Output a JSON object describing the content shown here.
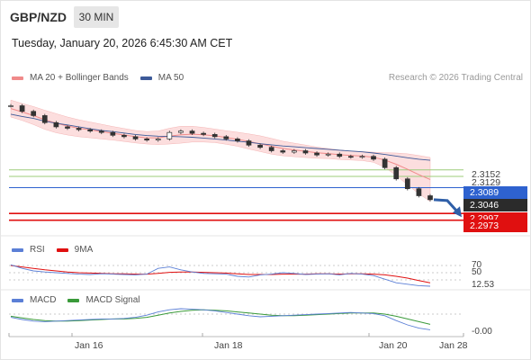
{
  "header": {
    "symbol": "GBP/NZD",
    "timeframe": "30 MIN",
    "datetime": "Tuesday, January 20, 2026 6:45:30 AM CET",
    "credit": "Research © 2026 Trading Central"
  },
  "legend": {
    "price": [
      {
        "label": "MA 20 + Bollinger Bands",
        "color": "#f08a8a"
      },
      {
        "label": "MA 50",
        "color": "#3d5a99"
      }
    ],
    "rsi": [
      {
        "label": "RSI",
        "color": "#5b7fd6"
      },
      {
        "label": "9MA",
        "color": "#e01010"
      }
    ],
    "macd": [
      {
        "label": "MACD",
        "color": "#5b7fd6"
      },
      {
        "label": "MACD Signal",
        "color": "#3a9a3a"
      }
    ]
  },
  "price_levels": [
    {
      "label": "2.3152",
      "value": 2.3152,
      "line_color": "#9ccc7a",
      "tag_color": "",
      "text_color": "#444"
    },
    {
      "label": "2.3129",
      "value": 2.3129,
      "line_color": "#9ccc7a",
      "tag_color": "",
      "text_color": "#444"
    },
    {
      "label": "2.3089",
      "value": 2.3089,
      "line_color": "#2e62cf",
      "tag_color": "#2e62cf",
      "text_color": "#ffffff"
    },
    {
      "label": "2.3046",
      "value": 2.3046,
      "line_color": "",
      "tag_color": "#2b2b2b",
      "text_color": "#ffffff"
    },
    {
      "label": "2.2997",
      "value": 2.2997,
      "line_color": "#e01010",
      "tag_color": "#e01010",
      "text_color": "#ffffff"
    },
    {
      "label": "2.2973",
      "value": 2.2973,
      "line_color": "#e01010",
      "tag_color": "#e01010",
      "text_color": "#ffffff"
    }
  ],
  "rsi_levels": {
    "upper": "70",
    "mid": "50",
    "current": "12.53"
  },
  "macd_current": "-0.00",
  "x_axis": [
    "Jan 16",
    "Jan 18",
    "Jan 20",
    "Jan 28"
  ],
  "chart_data": {
    "type": "line",
    "description_free": true,
    "x_ticks": [
      "Jan 16",
      "Jan 18",
      "Jan 20",
      "Jan 28"
    ],
    "price": [
      2.338,
      2.336,
      2.3345,
      2.332,
      2.3305,
      2.33,
      2.3295,
      2.329,
      2.3285,
      2.3275,
      2.327,
      2.3262,
      2.3258,
      2.3262,
      2.3285,
      2.329,
      2.3282,
      2.3278,
      2.327,
      2.3262,
      2.3255,
      2.324,
      2.3232,
      2.322,
      2.3215,
      2.322,
      2.3212,
      2.3205,
      2.3208,
      2.32,
      2.3198,
      2.32,
      2.319,
      2.316,
      2.312,
      2.3085,
      2.306,
      2.3046
    ],
    "ma50": [
      2.335,
      2.3342,
      2.3335,
      2.3325,
      2.3318,
      2.3312,
      2.3305,
      2.3298,
      2.3292,
      2.3288,
      2.3283,
      2.3278,
      2.3274,
      2.3272,
      2.3271,
      2.327,
      2.3268,
      2.3265,
      2.3262,
      2.3258,
      2.3254,
      2.325,
      2.3245,
      2.3241,
      2.3237,
      2.3234,
      2.3231,
      2.3228,
      2.3225,
      2.3222,
      2.3219,
      2.3216,
      2.3212,
      2.3207,
      2.3201,
      2.3195,
      2.319,
      2.3186
    ],
    "ma20": [
      2.337,
      2.3358,
      2.3345,
      2.333,
      2.3318,
      2.3308,
      2.33,
      2.3294,
      2.3288,
      2.3282,
      2.3276,
      2.327,
      2.3266,
      2.3266,
      2.3272,
      2.3277,
      2.3279,
      2.3277,
      2.3273,
      2.3267,
      2.3261,
      2.3253,
      2.3245,
      2.3236,
      2.3228,
      2.3223,
      2.3218,
      2.3213,
      2.321,
      2.3206,
      2.3203,
      2.3201,
      2.3197,
      2.3187,
      2.3172,
      2.3154,
      2.3135,
      2.3118
    ],
    "band_width": [
      0.003,
      0.003,
      0.0032,
      0.0034,
      0.0034,
      0.0032,
      0.003,
      0.0028,
      0.0026,
      0.0024,
      0.0023,
      0.0022,
      0.0022,
      0.0024,
      0.0028,
      0.003,
      0.0028,
      0.0026,
      0.0024,
      0.0024,
      0.0025,
      0.0027,
      0.0028,
      0.0028,
      0.0026,
      0.0024,
      0.0022,
      0.002,
      0.0018,
      0.0017,
      0.0016,
      0.0016,
      0.0018,
      0.0026,
      0.004,
      0.0055,
      0.0068,
      0.0078
    ],
    "price_ylim": [
      2.294,
      2.342
    ],
    "forecast": [
      2.3046,
      2.2997
    ],
    "rsi": [
      72,
      62,
      55,
      52,
      50,
      48,
      46,
      45,
      47,
      46,
      45,
      44,
      46,
      62,
      66,
      58,
      52,
      48,
      47,
      46,
      40,
      38,
      44,
      46,
      50,
      48,
      45,
      46,
      47,
      44,
      48,
      46,
      42,
      32,
      22,
      18,
      14,
      12.53
    ],
    "rsi_ma": [
      70,
      66,
      62,
      58,
      55,
      52,
      50,
      49,
      48,
      47,
      47,
      46,
      46,
      48,
      51,
      52,
      52,
      51,
      50,
      49,
      47,
      45,
      45,
      45,
      46,
      46,
      46,
      47,
      47,
      46,
      47,
      47,
      46,
      44,
      40,
      35,
      28,
      22
    ],
    "rsi_ylim": [
      0,
      100
    ],
    "macd": [
      -0.0006,
      -0.001,
      -0.0013,
      -0.0014,
      -0.0013,
      -0.0012,
      -0.0011,
      -0.001,
      -0.0009,
      -0.0009,
      -0.0008,
      -0.0006,
      -0.0002,
      0.0004,
      0.0008,
      0.001,
      0.0009,
      0.0008,
      0.0006,
      0.0003,
      0.0,
      -0.0003,
      -0.0005,
      -0.0004,
      -0.0003,
      -0.0002,
      -0.0001,
      0.0,
      0.0001,
      0.0002,
      0.0003,
      0.0002,
      0.0001,
      -0.0003,
      -0.0012,
      -0.002,
      -0.0026,
      -0.0029
    ],
    "macd_signal": [
      -0.0004,
      -0.0007,
      -0.001,
      -0.0012,
      -0.0013,
      -0.0013,
      -0.0012,
      -0.0011,
      -0.001,
      -0.0009,
      -0.0009,
      -0.0008,
      -0.0006,
      -0.0002,
      0.0002,
      0.0005,
      0.0007,
      0.0008,
      0.0007,
      0.0006,
      0.0004,
      0.0002,
      0.0,
      -0.0002,
      -0.0003,
      -0.0003,
      -0.0002,
      -0.0001,
      0.0,
      0.0001,
      0.0002,
      0.0002,
      0.0002,
      0.0,
      -0.0004,
      -0.0009,
      -0.0014,
      -0.0019
    ],
    "macd_ylim": [
      -0.0035,
      0.0015
    ]
  }
}
